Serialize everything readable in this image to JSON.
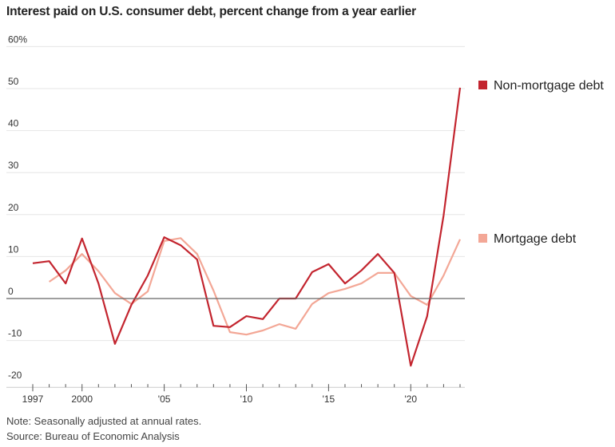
{
  "chart_data": {
    "type": "line",
    "title": "Interest paid on U.S. consumer debt, percent change from a year earlier",
    "xlabel": "",
    "ylabel": "",
    "ylim": [
      -20,
      60
    ],
    "xlim": [
      1997,
      2023
    ],
    "grid": true,
    "y_ticks": [
      -20,
      -10,
      0,
      10,
      20,
      30,
      40,
      50,
      60
    ],
    "y_tick_labels": [
      "-20",
      "-10",
      "0",
      "10",
      "20",
      "30",
      "40",
      "50",
      "60%"
    ],
    "x_ticks": [
      1997,
      2000,
      2005,
      2010,
      2015,
      2020
    ],
    "x_tick_labels": [
      "1997",
      "2000",
      "'05",
      "'10",
      "'15",
      "'20"
    ],
    "legend_position": "right",
    "series": [
      {
        "name": "Non-mortgage debt",
        "color": "#c3252f",
        "x": [
          1997,
          1998,
          1999,
          2000,
          2001,
          2002,
          2003,
          2004,
          2005,
          2006,
          2007,
          2008,
          2009,
          2010,
          2011,
          2012,
          2013,
          2014,
          2015,
          2016,
          2017,
          2018,
          2019,
          2020,
          2021,
          2022,
          2023
        ],
        "values": [
          8.4,
          8.9,
          3.6,
          14.3,
          3.6,
          -10.8,
          -1.5,
          5.5,
          14.6,
          12.7,
          9.3,
          -6.5,
          -6.8,
          -4.2,
          -4.9,
          0,
          0,
          6.3,
          8.2,
          3.6,
          6.7,
          10.6,
          6.1,
          -16,
          -4.2,
          19.8,
          50.2
        ]
      },
      {
        "name": "Mortgage debt",
        "color": "#f3a796",
        "x": [
          1998,
          1999,
          2000,
          2001,
          2002,
          2003,
          2004,
          2005,
          2006,
          2007,
          2008,
          2009,
          2010,
          2011,
          2012,
          2013,
          2014,
          2015,
          2016,
          2017,
          2018,
          2019,
          2020,
          2021,
          2022,
          2023
        ],
        "values": [
          4,
          6.7,
          10.6,
          6.5,
          1.3,
          -1.3,
          1.7,
          13.7,
          14.4,
          10.6,
          1.9,
          -8,
          -8.6,
          -7.6,
          -6.1,
          -7.2,
          -1.3,
          1.3,
          2.3,
          3.6,
          6.1,
          6.1,
          0.6,
          -1.5,
          5.5,
          14.1
        ]
      }
    ],
    "notes": [
      "Note: Seasonally adjusted at annual rates.",
      "Source: Bureau of Economic Analysis"
    ]
  }
}
